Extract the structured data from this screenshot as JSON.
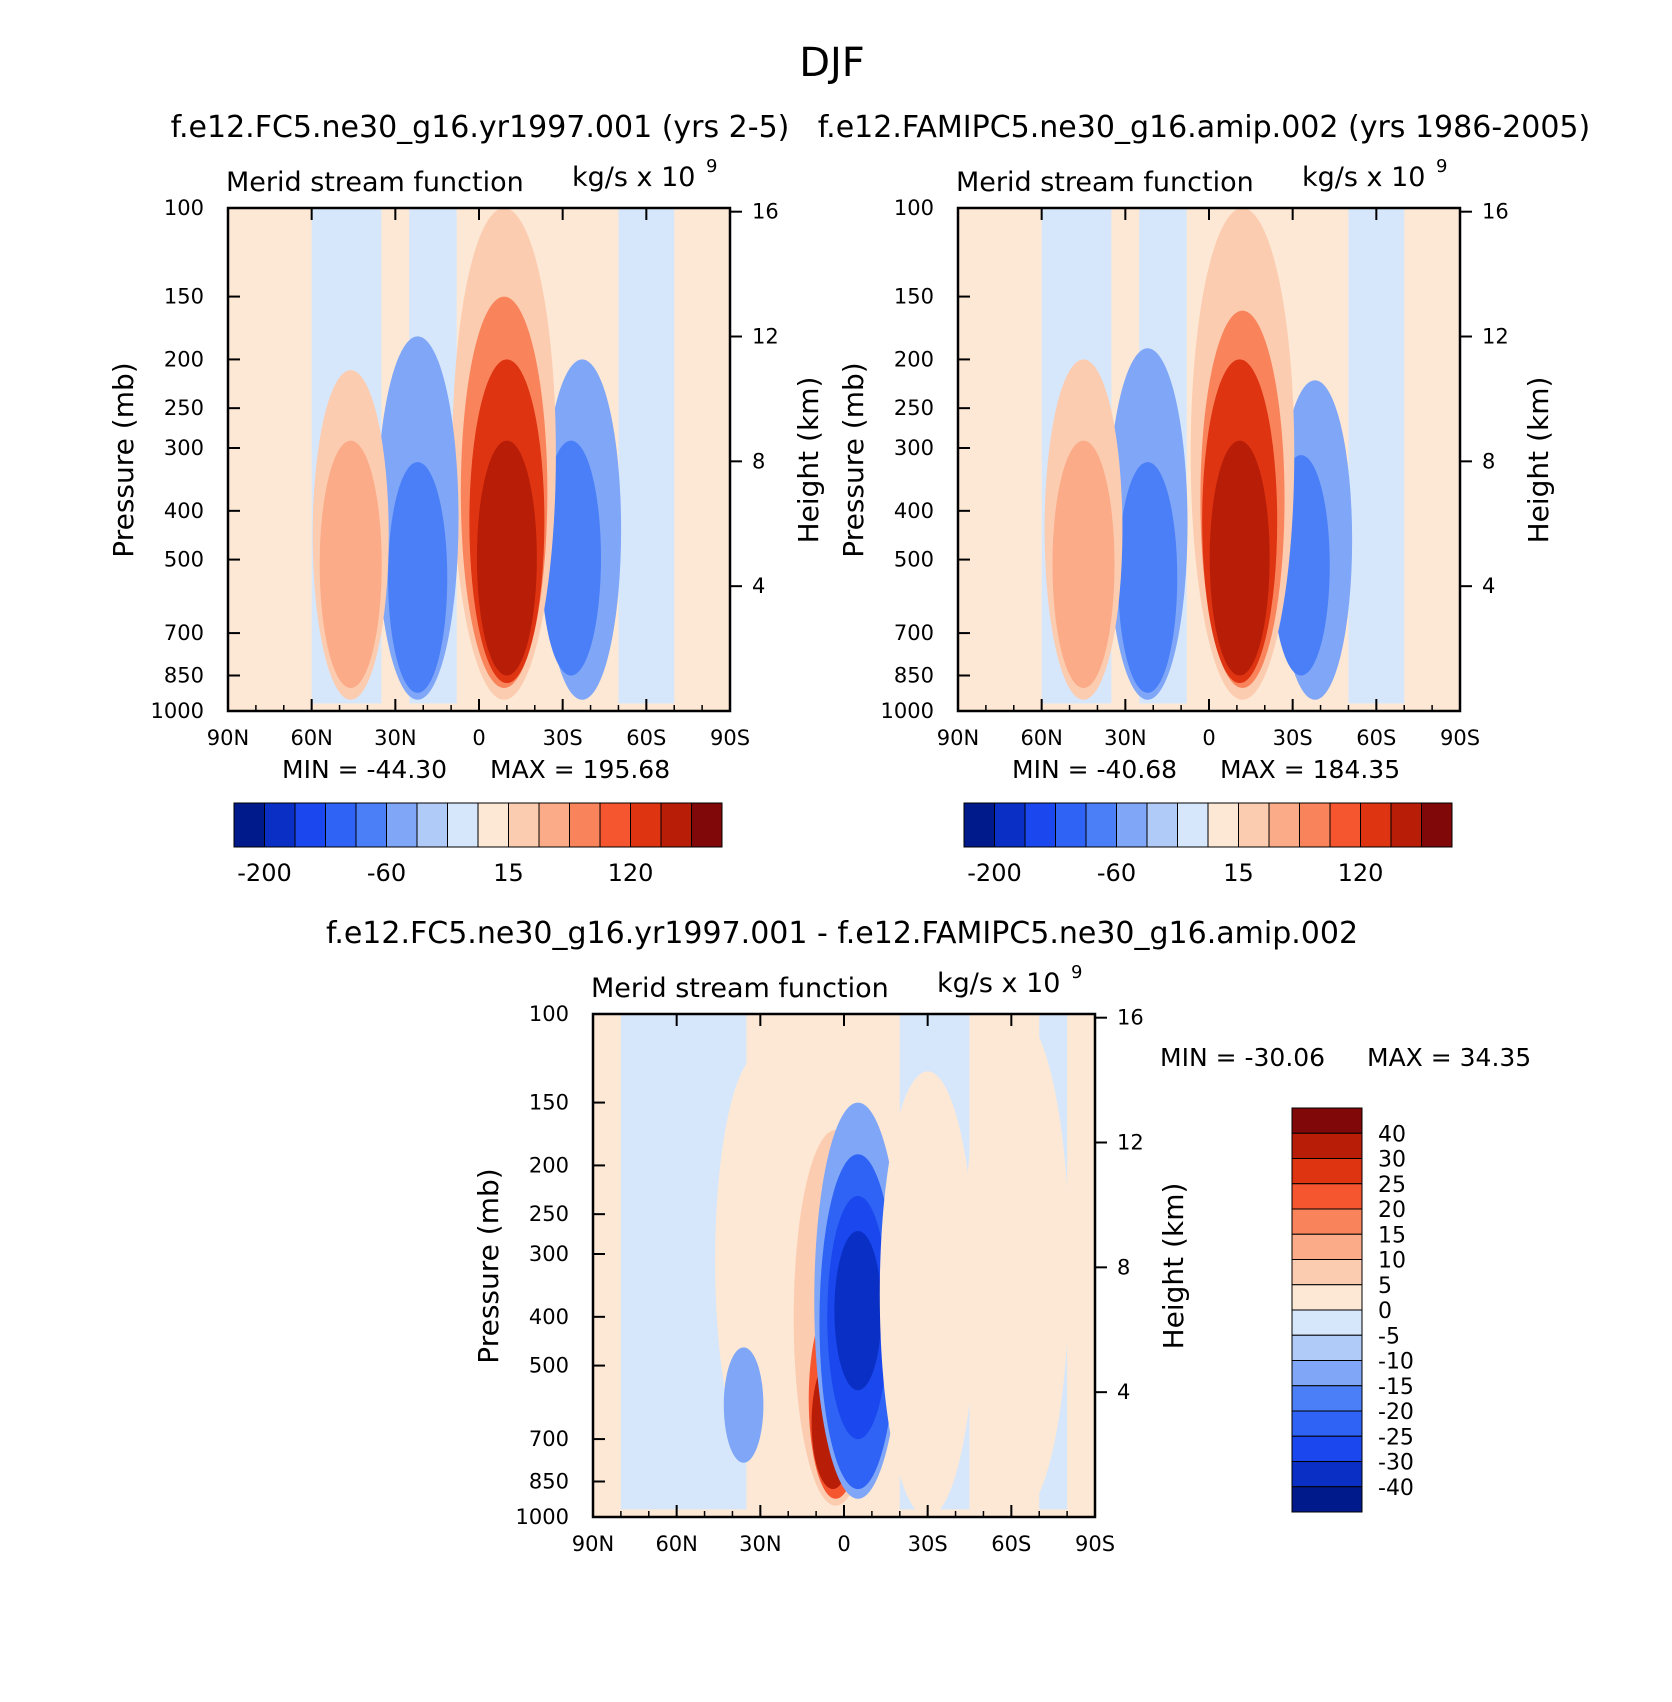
{
  "figure": {
    "title": "DJF"
  },
  "chart_data": [
    {
      "type": "heatmap",
      "title": "f.e12.FC5.ne30_g16.yr1997.001 (yrs 2-5)",
      "left_string": "Merid stream function",
      "right_string": "kg/s x 10",
      "right_string_exp": "9",
      "ylabel": "Pressure (mb)",
      "ylabel_right": "Height (km)",
      "x_ticks": [
        "90N",
        "60N",
        "30N",
        "0",
        "30S",
        "60S",
        "90S"
      ],
      "y_ticks": [
        "100",
        "150",
        "200",
        "250",
        "300",
        "400",
        "500",
        "700",
        "850",
        "1000"
      ],
      "y_right_ticks": [
        "16",
        "12",
        "8",
        "4"
      ],
      "xlim": [
        90,
        -90
      ],
      "ylim": [
        1000,
        100
      ],
      "y_scale": "log",
      "min_text": "MIN = -44.30",
      "max_text": "MAX = 195.68",
      "min": -44.3,
      "max": 195.68,
      "colorbar_labels": [
        "-200",
        "-60",
        "15",
        "120"
      ],
      "colorbar_orientation": "horizontal",
      "contour_levels": [
        -200,
        -150,
        -100,
        -60,
        -30,
        -15,
        -5,
        0,
        5,
        15,
        30,
        60,
        90,
        120,
        150,
        200
      ],
      "cells": [
        {
          "lat_center": -37,
          "p_top": 200,
          "p_bottom": 950,
          "level": -15
        },
        {
          "lat_center": -33,
          "p_top": 290,
          "p_bottom": 850,
          "level": -30
        },
        {
          "lat_center": -9,
          "p_top": 100,
          "p_bottom": 950,
          "level": 15
        },
        {
          "lat_center": -9,
          "p_top": 150,
          "p_bottom": 900,
          "level": 60
        },
        {
          "lat_center": -10,
          "p_top": 200,
          "p_bottom": 880,
          "level": 120
        },
        {
          "lat_center": -10,
          "p_top": 290,
          "p_bottom": 850,
          "level": 195
        },
        {
          "lat_center": 22,
          "p_top": 180,
          "p_bottom": 950,
          "level": -15
        },
        {
          "lat_center": 22,
          "p_top": 320,
          "p_bottom": 920,
          "level": -30
        },
        {
          "lat_center": 46,
          "p_top": 210,
          "p_bottom": 950,
          "level": 15
        },
        {
          "lat_center": 46,
          "p_top": 290,
          "p_bottom": 900,
          "level": 30
        }
      ]
    },
    {
      "type": "heatmap",
      "title": "f.e12.FAMIPC5.ne30_g16.amip.002 (yrs 1986-2005)",
      "left_string": "Merid stream function",
      "right_string": "kg/s x 10",
      "right_string_exp": "9",
      "ylabel": "Pressure (mb)",
      "ylabel_right": "Height (km)",
      "x_ticks": [
        "90N",
        "60N",
        "30N",
        "0",
        "30S",
        "60S",
        "90S"
      ],
      "y_ticks": [
        "100",
        "150",
        "200",
        "250",
        "300",
        "400",
        "500",
        "700",
        "850",
        "1000"
      ],
      "y_right_ticks": [
        "16",
        "12",
        "8",
        "4"
      ],
      "xlim": [
        90,
        -90
      ],
      "ylim": [
        1000,
        100
      ],
      "y_scale": "log",
      "min_text": "MIN = -40.68",
      "max_text": "MAX = 184.35",
      "min": -40.68,
      "max": 184.35,
      "colorbar_labels": [
        "-200",
        "-60",
        "15",
        "120"
      ],
      "colorbar_orientation": "horizontal",
      "contour_levels": [
        -200,
        -150,
        -100,
        -60,
        -30,
        -15,
        -5,
        0,
        5,
        15,
        30,
        60,
        90,
        120,
        150,
        200
      ],
      "cells": [
        {
          "lat_center": -38,
          "p_top": 220,
          "p_bottom": 950,
          "level": -15
        },
        {
          "lat_center": -33,
          "p_top": 310,
          "p_bottom": 850,
          "level": -30
        },
        {
          "lat_center": -12,
          "p_top": 100,
          "p_bottom": 950,
          "level": 15
        },
        {
          "lat_center": -12,
          "p_top": 160,
          "p_bottom": 900,
          "level": 60
        },
        {
          "lat_center": -11,
          "p_top": 200,
          "p_bottom": 880,
          "level": 120
        },
        {
          "lat_center": -11,
          "p_top": 290,
          "p_bottom": 850,
          "level": 180
        },
        {
          "lat_center": 22,
          "p_top": 190,
          "p_bottom": 950,
          "level": -15
        },
        {
          "lat_center": 22,
          "p_top": 320,
          "p_bottom": 920,
          "level": -30
        },
        {
          "lat_center": 45,
          "p_top": 200,
          "p_bottom": 950,
          "level": 15
        },
        {
          "lat_center": 45,
          "p_top": 290,
          "p_bottom": 900,
          "level": 30
        }
      ]
    },
    {
      "type": "heatmap",
      "title": "f.e12.FC5.ne30_g16.yr1997.001 - f.e12.FAMIPC5.ne30_g16.amip.002",
      "left_string": "Merid stream function",
      "right_string": "kg/s x 10",
      "right_string_exp": "9",
      "ylabel": "Pressure (mb)",
      "ylabel_right": "Height (km)",
      "x_ticks": [
        "90N",
        "60N",
        "30N",
        "0",
        "30S",
        "60S",
        "90S"
      ],
      "y_ticks": [
        "100",
        "150",
        "200",
        "250",
        "300",
        "400",
        "500",
        "700",
        "850",
        "1000"
      ],
      "y_right_ticks": [
        "16",
        "12",
        "8",
        "4"
      ],
      "xlim": [
        90,
        -90
      ],
      "ylim": [
        1000,
        100
      ],
      "y_scale": "log",
      "min_text": "MIN = -30.06",
      "max_text": "MAX =  34.35",
      "min": -30.06,
      "max": 34.35,
      "colorbar_labels": [
        "40",
        "30",
        "25",
        "20",
        "15",
        "10",
        "5",
        "0",
        "-5",
        "-10",
        "-15",
        "-20",
        "-25",
        "-30",
        "-40"
      ],
      "colorbar_orientation": "vertical",
      "contour_levels": [
        -40,
        -30,
        -25,
        -20,
        -15,
        -10,
        -5,
        0,
        5,
        10,
        15,
        20,
        25,
        30,
        40
      ],
      "cells": [
        {
          "lat_center": 30,
          "p_top": 120,
          "p_bottom": 800,
          "level": 3
        },
        {
          "lat_center": -24,
          "p_top": 240,
          "p_bottom": 350,
          "level": -8
        },
        {
          "lat_center": 3,
          "p_top": 170,
          "p_bottom": 950,
          "level": 8
        },
        {
          "lat_center": 3,
          "p_top": 370,
          "p_bottom": 920,
          "level": 22
        },
        {
          "lat_center": 4,
          "p_top": 480,
          "p_bottom": 880,
          "level": 32
        },
        {
          "lat_center": -5,
          "p_top": 150,
          "p_bottom": 920,
          "level": -10
        },
        {
          "lat_center": -5,
          "p_top": 190,
          "p_bottom": 880,
          "level": -18
        },
        {
          "lat_center": -5,
          "p_top": 230,
          "p_bottom": 700,
          "level": -25
        },
        {
          "lat_center": -5,
          "p_top": 270,
          "p_bottom": 560,
          "level": -30
        },
        {
          "lat_center": 36,
          "p_top": 460,
          "p_bottom": 780,
          "level": -8
        },
        {
          "lat_center": -30,
          "p_top": 130,
          "p_bottom": 1000,
          "level": 3
        },
        {
          "lat_center": -62,
          "p_top": 100,
          "p_bottom": 1000,
          "level": 3
        }
      ]
    }
  ],
  "colors": {
    "neg_blues": [
      "#001a8c",
      "#0a2fc4",
      "#1a47ee",
      "#2e63f6",
      "#4a7ff7",
      "#7fa6f7",
      "#b1cbf9",
      "#d6e7fb"
    ],
    "pos_reds": [
      "#fde8d5",
      "#fcccb0",
      "#fbab88",
      "#f9845c",
      "#f5562f",
      "#de3411",
      "#b81d08",
      "#800808"
    ],
    "axis": "#000000",
    "background": "#ffffff"
  }
}
